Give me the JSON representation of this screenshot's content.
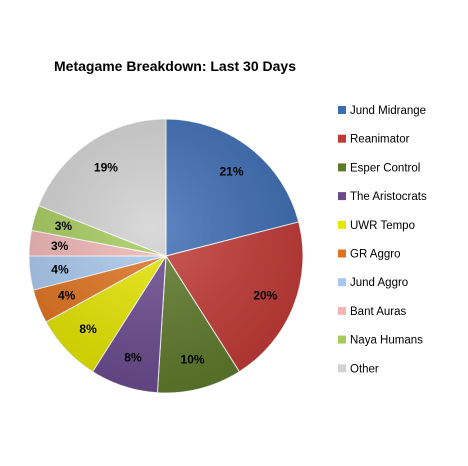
{
  "chart_data": {
    "type": "pie",
    "title": "Metagame Breakdown: Last 30 Days",
    "legend_position": "right",
    "slices": [
      {
        "label": "Jund Midrange",
        "value": 21,
        "display": "21%",
        "color": "#3d6db5"
      },
      {
        "label": "Reanimator",
        "value": 20,
        "display": "20%",
        "color": "#c23a36"
      },
      {
        "label": "Esper Control",
        "value": 10,
        "display": "10%",
        "color": "#5e7a2a"
      },
      {
        "label": "The Aristocrats",
        "value": 8,
        "display": "8%",
        "color": "#6a4a8f"
      },
      {
        "label": "UWR Tempo",
        "value": 8,
        "display": "8%",
        "color": "#e6e600"
      },
      {
        "label": "GR Aggro",
        "value": 4,
        "display": "4%",
        "color": "#e0731f"
      },
      {
        "label": "Jund Aggro",
        "value": 4,
        "display": "4%",
        "color": "#a9c8ee"
      },
      {
        "label": "Bant Auras",
        "value": 3,
        "display": "3%",
        "color": "#f0b6b4"
      },
      {
        "label": "Naya Humans",
        "value": 3,
        "display": "3%",
        "color": "#a6cc5e"
      },
      {
        "label": "Other",
        "value": 19,
        "display": "19%",
        "color": "#d2d2d2"
      }
    ]
  }
}
